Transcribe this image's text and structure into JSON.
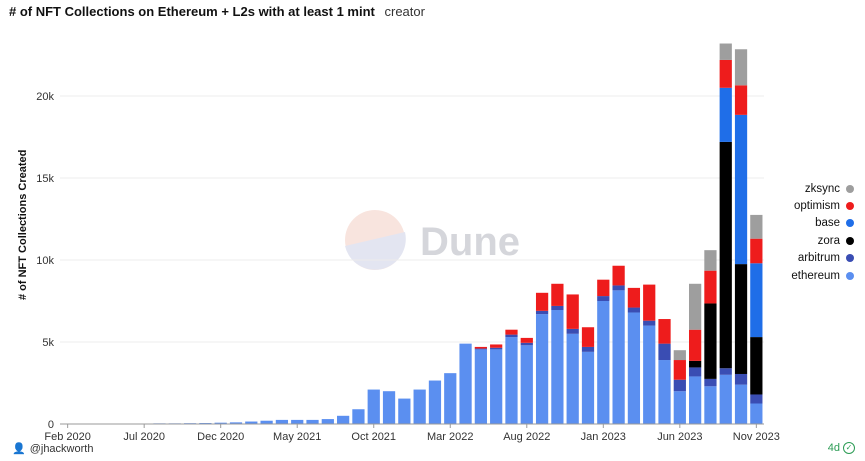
{
  "header": {
    "title": "# of NFT Collections on Ethereum + L2s with at least 1 mint",
    "subtitle": "creator"
  },
  "watermark": {
    "text": "Dune"
  },
  "footer": {
    "author": "@jhackworth",
    "age": "4d"
  },
  "colors": {
    "ethereum": "#5b8ff0",
    "arbitrum": "#3a4db3",
    "zora": "#000000",
    "base": "#1f6ee8",
    "optimism": "#ee1c1c",
    "zksync": "#9e9e9e"
  },
  "chart_data": {
    "type": "bar",
    "stacked": true,
    "title": "# of NFT Collections on Ethereum + L2s with at least 1 mint",
    "ylabel": "# of NFT Collections Created",
    "xlabel": "",
    "ylim": [
      0,
      24000
    ],
    "yticks": [
      0,
      5000,
      10000,
      15000,
      20000
    ],
    "ytick_labels": [
      "0",
      "5k",
      "10k",
      "15k",
      "20k"
    ],
    "grid": true,
    "legend_position": "right",
    "categories": [
      "Feb 2020",
      "Mar 2020",
      "Apr 2020",
      "May 2020",
      "Jun 2020",
      "Jul 2020",
      "Aug 2020",
      "Sep 2020",
      "Oct 2020",
      "Nov 2020",
      "Dec 2020",
      "Jan 2021",
      "Feb 2021",
      "Mar 2021",
      "Apr 2021",
      "May 2021",
      "Jun 2021",
      "Jul 2021",
      "Aug 2021",
      "Sep 2021",
      "Oct 2021",
      "Nov 2021",
      "Dec 2021",
      "Jan 2022",
      "Feb 2022",
      "Mar 2022",
      "Apr 2022",
      "May 2022",
      "Jun 2022",
      "Jul 2022",
      "Aug 2022",
      "Sep 2022",
      "Oct 2022",
      "Nov 2022",
      "Dec 2022",
      "Jan 2023",
      "Feb 2023",
      "Mar 2023",
      "Apr 2023",
      "May 2023",
      "Jun 2023",
      "Jul 2023",
      "Aug 2023",
      "Sep 2023",
      "Oct 2023",
      "Nov 2023"
    ],
    "x_tick_labels": [
      {
        "index": 0,
        "label": "Feb 2020"
      },
      {
        "index": 5,
        "label": "Jul 2020"
      },
      {
        "index": 10,
        "label": "Dec 2020"
      },
      {
        "index": 15,
        "label": "May 2021"
      },
      {
        "index": 20,
        "label": "Oct 2021"
      },
      {
        "index": 25,
        "label": "Mar 2022"
      },
      {
        "index": 30,
        "label": "Aug 2022"
      },
      {
        "index": 35,
        "label": "Jan 2023"
      },
      {
        "index": 40,
        "label": "Jun 2023"
      },
      {
        "index": 45,
        "label": "Nov 2023"
      }
    ],
    "series": [
      {
        "name": "ethereum",
        "values": [
          20,
          20,
          20,
          20,
          30,
          30,
          40,
          40,
          50,
          60,
          80,
          100,
          150,
          200,
          250,
          250,
          250,
          300,
          500,
          900,
          2100,
          2000,
          1550,
          2100,
          2650,
          3100,
          4900,
          4550,
          4550,
          5300,
          4800,
          6700,
          6950,
          5500,
          4400,
          7500,
          8150,
          6800,
          6000,
          3900,
          2000,
          2900,
          2300,
          3000,
          2400,
          1250
        ]
      },
      {
        "name": "arbitrum",
        "values": [
          0,
          0,
          0,
          0,
          0,
          0,
          0,
          0,
          0,
          0,
          0,
          0,
          0,
          0,
          0,
          0,
          0,
          0,
          0,
          0,
          0,
          0,
          0,
          0,
          0,
          0,
          0,
          50,
          100,
          150,
          150,
          200,
          250,
          300,
          300,
          300,
          300,
          300,
          300,
          1000,
          700,
          550,
          450,
          400,
          650,
          550
        ]
      },
      {
        "name": "zora",
        "values": [
          0,
          0,
          0,
          0,
          0,
          0,
          0,
          0,
          0,
          0,
          0,
          0,
          0,
          0,
          0,
          0,
          0,
          0,
          0,
          0,
          0,
          0,
          0,
          0,
          0,
          0,
          0,
          0,
          0,
          0,
          0,
          0,
          0,
          0,
          0,
          0,
          0,
          0,
          0,
          0,
          0,
          400,
          4600,
          13800,
          6700,
          3500
        ]
      },
      {
        "name": "base",
        "values": [
          0,
          0,
          0,
          0,
          0,
          0,
          0,
          0,
          0,
          0,
          0,
          0,
          0,
          0,
          0,
          0,
          0,
          0,
          0,
          0,
          0,
          0,
          0,
          0,
          0,
          0,
          0,
          0,
          0,
          0,
          0,
          0,
          0,
          0,
          0,
          0,
          0,
          0,
          0,
          0,
          0,
          0,
          0,
          3300,
          9100,
          4500
        ]
      },
      {
        "name": "optimism",
        "values": [
          0,
          0,
          0,
          0,
          0,
          0,
          0,
          0,
          0,
          0,
          0,
          0,
          0,
          0,
          0,
          0,
          0,
          0,
          0,
          0,
          0,
          0,
          0,
          0,
          0,
          0,
          0,
          100,
          200,
          300,
          300,
          1100,
          1350,
          2100,
          1200,
          1000,
          1200,
          1200,
          2200,
          1500,
          1200,
          1900,
          2000,
          1700,
          1800,
          1500
        ]
      },
      {
        "name": "zksync",
        "values": [
          0,
          0,
          0,
          0,
          0,
          0,
          0,
          0,
          0,
          0,
          0,
          0,
          0,
          0,
          0,
          0,
          0,
          0,
          0,
          0,
          0,
          0,
          0,
          0,
          0,
          0,
          0,
          0,
          0,
          0,
          0,
          0,
          0,
          0,
          0,
          0,
          0,
          0,
          0,
          0,
          600,
          2800,
          1250,
          1000,
          2200,
          1450
        ]
      }
    ]
  }
}
